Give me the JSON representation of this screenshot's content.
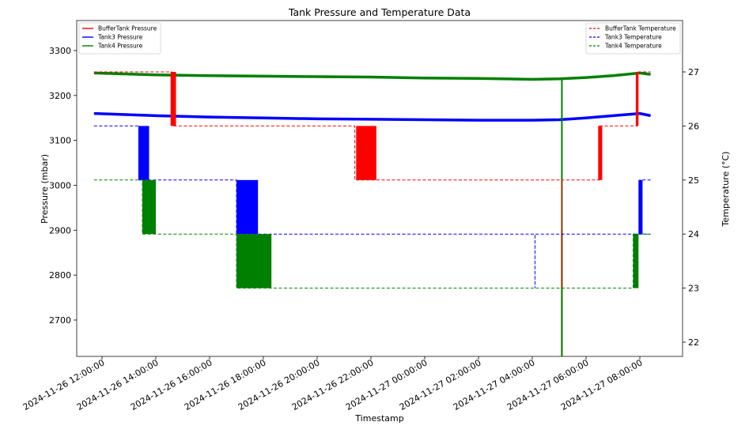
{
  "chart_data": {
    "type": "line",
    "title": "Tank Pressure and Temperature Data",
    "xlabel": "Timestamp",
    "ylabel": "Pressure (mbar)",
    "y2label": "Temperature (°C)",
    "ylim": [
      2620,
      3370
    ],
    "y2lim": [
      21.75,
      27.75
    ],
    "grid": false,
    "x_ticks": [
      "2024-11-26 12:00:00",
      "2024-11-26 14:00:00",
      "2024-11-26 16:00:00",
      "2024-11-26 18:00:00",
      "2024-11-26 20:00:00",
      "2024-11-26 22:00:00",
      "2024-11-27 00:00:00",
      "2024-11-27 02:00:00",
      "2024-11-27 04:00:00",
      "2024-11-27 06:00:00",
      "2024-11-27 08:00:00"
    ],
    "y_ticks": [
      2700,
      2800,
      2900,
      3000,
      3100,
      3200,
      3300
    ],
    "y2_ticks": [
      22,
      23,
      24,
      25,
      26,
      27
    ],
    "legend_left": {
      "position": "upper left",
      "entries": [
        "BufferTank Pressure",
        "Tank3 Pressure",
        "Tank4 Pressure"
      ]
    },
    "legend_right": {
      "position": "upper right",
      "entries": [
        "BufferTank Temperature",
        "Tank3 Temperature",
        "Tank4 Temperature"
      ]
    },
    "colors": {
      "buffertank": "#ff0000",
      "tank3": "#0000ff",
      "tank4": "#008000"
    },
    "x_hours_from_2024-11-26_12:00": [
      -0.3,
      2,
      4,
      6,
      8,
      10,
      12,
      14,
      16,
      17,
      18,
      19,
      20.4
    ],
    "series": [
      {
        "name": "BufferTank Pressure",
        "axis": "left",
        "style": "solid",
        "points_hours_value": [
          [
            17.1,
            2620
          ],
          [
            17.1,
            2900
          ]
        ],
        "note": "Only visible as a short vertical segment near 2024-11-27 05:06"
      },
      {
        "name": "Tank3 Pressure",
        "axis": "left",
        "style": "solid",
        "points_hours_value": [
          [
            -0.3,
            3160
          ],
          [
            2,
            3155
          ],
          [
            4,
            3152
          ],
          [
            6,
            3150
          ],
          [
            8,
            3148
          ],
          [
            10,
            3147
          ],
          [
            12,
            3146
          ],
          [
            14,
            3145
          ],
          [
            16,
            3145
          ],
          [
            17,
            3146
          ],
          [
            18,
            3150
          ],
          [
            19,
            3155
          ],
          [
            20,
            3160
          ],
          [
            20.4,
            3155
          ]
        ]
      },
      {
        "name": "Tank4 Pressure",
        "axis": "left",
        "style": "solid",
        "points_hours_value": [
          [
            -0.3,
            3250
          ],
          [
            2,
            3246
          ],
          [
            4,
            3244
          ],
          [
            6,
            3243
          ],
          [
            8,
            3242
          ],
          [
            10,
            3241
          ],
          [
            12,
            3239
          ],
          [
            14,
            3238
          ],
          [
            16,
            3236
          ],
          [
            17,
            3237
          ],
          [
            18,
            3240
          ],
          [
            19,
            3244
          ],
          [
            20,
            3250
          ],
          [
            20.4,
            3247
          ]
        ],
        "spike": {
          "hour": 17.1,
          "from": 3240,
          "to": 2620
        }
      },
      {
        "name": "BufferTank Temperature",
        "axis": "right",
        "style": "dashed",
        "steps_hours_value": [
          [
            -0.3,
            27.0
          ],
          [
            2.6,
            27.0
          ],
          [
            2.6,
            26.0
          ],
          [
            9.4,
            26.0
          ],
          [
            9.4,
            25.0
          ],
          [
            16.7,
            25.0
          ],
          [
            17.1,
            25.0
          ],
          [
            17.1,
            23.0
          ],
          [
            17.1,
            25.0
          ],
          [
            18.5,
            25.0
          ],
          [
            18.5,
            26.0
          ],
          [
            19.9,
            26.0
          ],
          [
            19.9,
            27.0
          ],
          [
            20.4,
            27.0
          ]
        ],
        "oscillation_regions": [
          [
            2.55,
            2.75,
            26,
            27
          ],
          [
            9.45,
            10.2,
            25,
            26
          ],
          [
            18.45,
            18.6,
            25,
            26
          ],
          [
            19.85,
            19.95,
            26,
            27
          ]
        ]
      },
      {
        "name": "Tank3 Temperature",
        "axis": "right",
        "style": "dashed",
        "steps_hours_value": [
          [
            -0.3,
            26.0
          ],
          [
            1.4,
            26.0
          ],
          [
            1.4,
            25.0
          ],
          [
            5.0,
            25.0
          ],
          [
            5.0,
            24.0
          ],
          [
            16.1,
            24.0
          ],
          [
            16.1,
            23.0
          ],
          [
            16.1,
            24.0
          ],
          [
            20.4,
            24.0
          ]
        ],
        "oscillation_regions": [
          [
            1.35,
            1.75,
            25,
            26
          ],
          [
            5.0,
            5.8,
            24,
            25
          ],
          [
            19.95,
            20.1,
            24,
            25
          ]
        ],
        "late_step": {
          "hour": 20.0,
          "to": 25.0
        }
      },
      {
        "name": "Tank4 Temperature",
        "axis": "right",
        "style": "dashed",
        "steps_hours_value": [
          [
            -0.3,
            25.0
          ],
          [
            1.5,
            25.0
          ],
          [
            1.5,
            24.0
          ],
          [
            5.0,
            24.0
          ],
          [
            5.0,
            23.0
          ],
          [
            19.75,
            23.0
          ],
          [
            19.75,
            24.0
          ],
          [
            20.4,
            24.0
          ]
        ],
        "oscillation_regions": [
          [
            1.5,
            2.0,
            24,
            25
          ],
          [
            5.0,
            6.3,
            23,
            24
          ],
          [
            19.75,
            19.95,
            23,
            24
          ]
        ]
      }
    ]
  },
  "labels": {
    "title": "Tank Pressure and Temperature Data",
    "xlabel": "Timestamp",
    "ylabel": "Pressure (mbar)",
    "y2label": "Temperature (°C)",
    "legend_left": [
      "BufferTank Pressure",
      "Tank3 Pressure",
      "Tank4 Pressure"
    ],
    "legend_right": [
      "BufferTank Temperature",
      "Tank3 Temperature",
      "Tank4 Temperature"
    ]
  }
}
